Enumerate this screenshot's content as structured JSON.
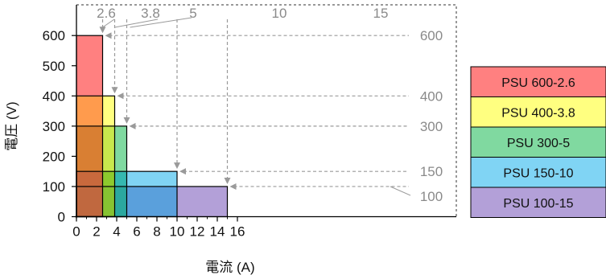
{
  "chart_data": {
    "type": "area",
    "xlabel": "電流 (A)",
    "ylabel": "電圧 (V)",
    "xlim": [
      0,
      17.8
    ],
    "ylim": [
      0,
      700
    ],
    "xticks": [
      0,
      2,
      4,
      6,
      8,
      10,
      12,
      14,
      16
    ],
    "yticks": [
      0,
      100,
      200,
      300,
      400,
      500,
      600
    ],
    "series": [
      {
        "name": "PSU 600-2.6",
        "current": 2.6,
        "voltage": 600,
        "color": "#ff8080"
      },
      {
        "name": "PSU 400-3.8",
        "current": 3.8,
        "voltage": 400,
        "color": "#ffff80"
      },
      {
        "name": "PSU 300-5",
        "current": 5,
        "voltage": 300,
        "color": "#80d9a0"
      },
      {
        "name": "PSU 150-10",
        "current": 10,
        "voltage": 150,
        "color": "#80d4f4"
      },
      {
        "name": "PSU 100-15",
        "current": 15,
        "voltage": 100,
        "color": "#b3a0d8"
      }
    ],
    "overlap_colors": {
      "red_yellow": "#ff9b4d",
      "red_yellow_green": "#d97f33",
      "red_yellow_green_blue": "#c8693d",
      "red_yellow_green_blue_purple": "#c0683f",
      "yellow_green": "#c8e84d",
      "yellow_green_blue": "#8dca2e",
      "yellow_green_blue_purple": "#86c332",
      "green_blue": "#35b8b0",
      "green_blue_purple": "#2ba89f",
      "blue_purple": "#5aa0dc"
    },
    "current_annotations": [
      "2.6",
      "3.8",
      "5",
      "10",
      "15"
    ],
    "voltage_annotations": [
      "600",
      "400",
      "300",
      "150",
      "100"
    ],
    "annotation_color": "#9a9a9a",
    "legend_position": "right"
  }
}
